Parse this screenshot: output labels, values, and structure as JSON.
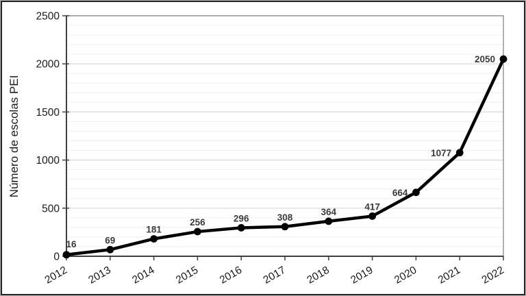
{
  "frame": {
    "background": "#ffffff",
    "border_color": "#242424"
  },
  "chart_data": {
    "type": "line",
    "title": "",
    "xlabel": "",
    "ylabel": "Número de escolas PEI",
    "categories": [
      "2012",
      "2013",
      "2014",
      "2015",
      "2016",
      "2017",
      "2018",
      "2019",
      "2020",
      "2021",
      "2022"
    ],
    "values": [
      16,
      69,
      181,
      256,
      296,
      308,
      364,
      417,
      664,
      1077,
      2050
    ],
    "data_labels": [
      "16",
      "69",
      "181",
      "256",
      "296",
      "308",
      "364",
      "417",
      "664",
      "1077",
      "2050"
    ],
    "label_placement": [
      "top",
      "top",
      "top",
      "top",
      "top",
      "top",
      "top",
      "top",
      "left",
      "left",
      "left"
    ],
    "yticks": [
      "0",
      "500",
      "1000",
      "1500",
      "2000",
      "2500"
    ],
    "ylim": [
      0,
      2500
    ],
    "ytick_step": 500,
    "yminor_step": 100,
    "grid": "horizontal, major and minor, on",
    "legend": "none",
    "marker": "circle",
    "colors": {
      "line": "#000000",
      "marker": "#000000",
      "data_label": "#3b3b3b",
      "axis": "#3f3f3f",
      "tick_label": "#1a1a1a",
      "major_grid": "#d7d7d7",
      "minor_grid": "#efefef",
      "plot_border": "#858585"
    }
  }
}
